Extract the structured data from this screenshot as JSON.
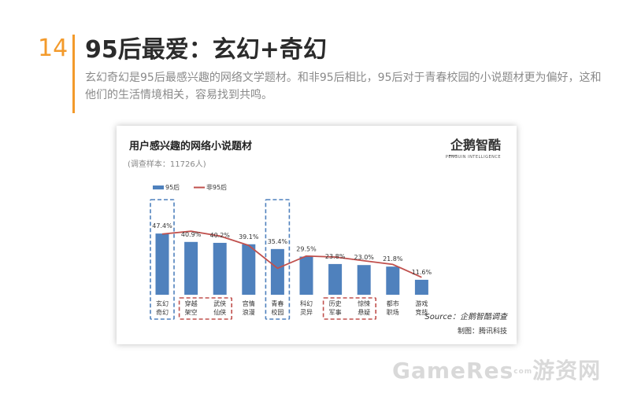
{
  "slide": {
    "number": "14",
    "title": "95后最爱：玄幻+奇幻",
    "description": "玄幻奇幻是95后最感兴趣的网络文学题材。和非95后相比，95后对于青春校园的小说题材更为偏好，这和他们的生活情境相关，容易找到共鸣。"
  },
  "chart_data": {
    "type": "bar",
    "title": "用户感兴趣的网络小说题材",
    "subtitle": "(调查样本：11726人)",
    "logo": {
      "text": "企鹅智酷",
      "subtext": "PENGUIN INTELLIGENCE"
    },
    "categories": [
      [
        "玄幻",
        "奇幻"
      ],
      [
        "穿越",
        "架空"
      ],
      [
        "武侠",
        "仙侠"
      ],
      [
        "宫情",
        "浪漫"
      ],
      [
        "青春",
        "校园"
      ],
      [
        "科幻",
        "灵异"
      ],
      [
        "历史",
        "军事"
      ],
      [
        "惊悚",
        "悬疑"
      ],
      [
        "都市",
        "职场"
      ],
      [
        "游戏",
        "竞技"
      ]
    ],
    "series": [
      {
        "name": "95后",
        "type": "bar",
        "color": "#4f81bd",
        "values": [
          47.4,
          40.9,
          40.2,
          39.1,
          35.4,
          29.5,
          23.8,
          23.0,
          21.8,
          11.6
        ],
        "labels": [
          "47.4%",
          "40.9%",
          "40.2%",
          "39.1%",
          "35.4%",
          "29.5%",
          "23.8%",
          "23.0%",
          "21.8%",
          "11.6%"
        ]
      },
      {
        "name": "非95后",
        "type": "line",
        "color": "#c0504d",
        "values": [
          47.0,
          49.2,
          45.5,
          38.2,
          20.5,
          30.0,
          29.2,
          26.3,
          23.5,
          13.5
        ]
      }
    ],
    "ylim": [
      0,
      70
    ],
    "xlabel": "",
    "ylabel": "",
    "grid": false,
    "legend": "top-left",
    "highlight_groups": [
      {
        "color": "#4f81bd",
        "categories": [
          0
        ]
      },
      {
        "color": "#c0504d",
        "categories": [
          1,
          2
        ]
      },
      {
        "color": "#4f81bd",
        "categories": [
          4
        ]
      },
      {
        "color": "#c0504d",
        "categories": [
          6,
          7
        ]
      }
    ],
    "source": "Source：企鹅智酷调查",
    "credit": "制图：腾讯科技"
  },
  "watermark": {
    "text": "GameRes",
    "sub": "com",
    "suffix": "游资网"
  }
}
